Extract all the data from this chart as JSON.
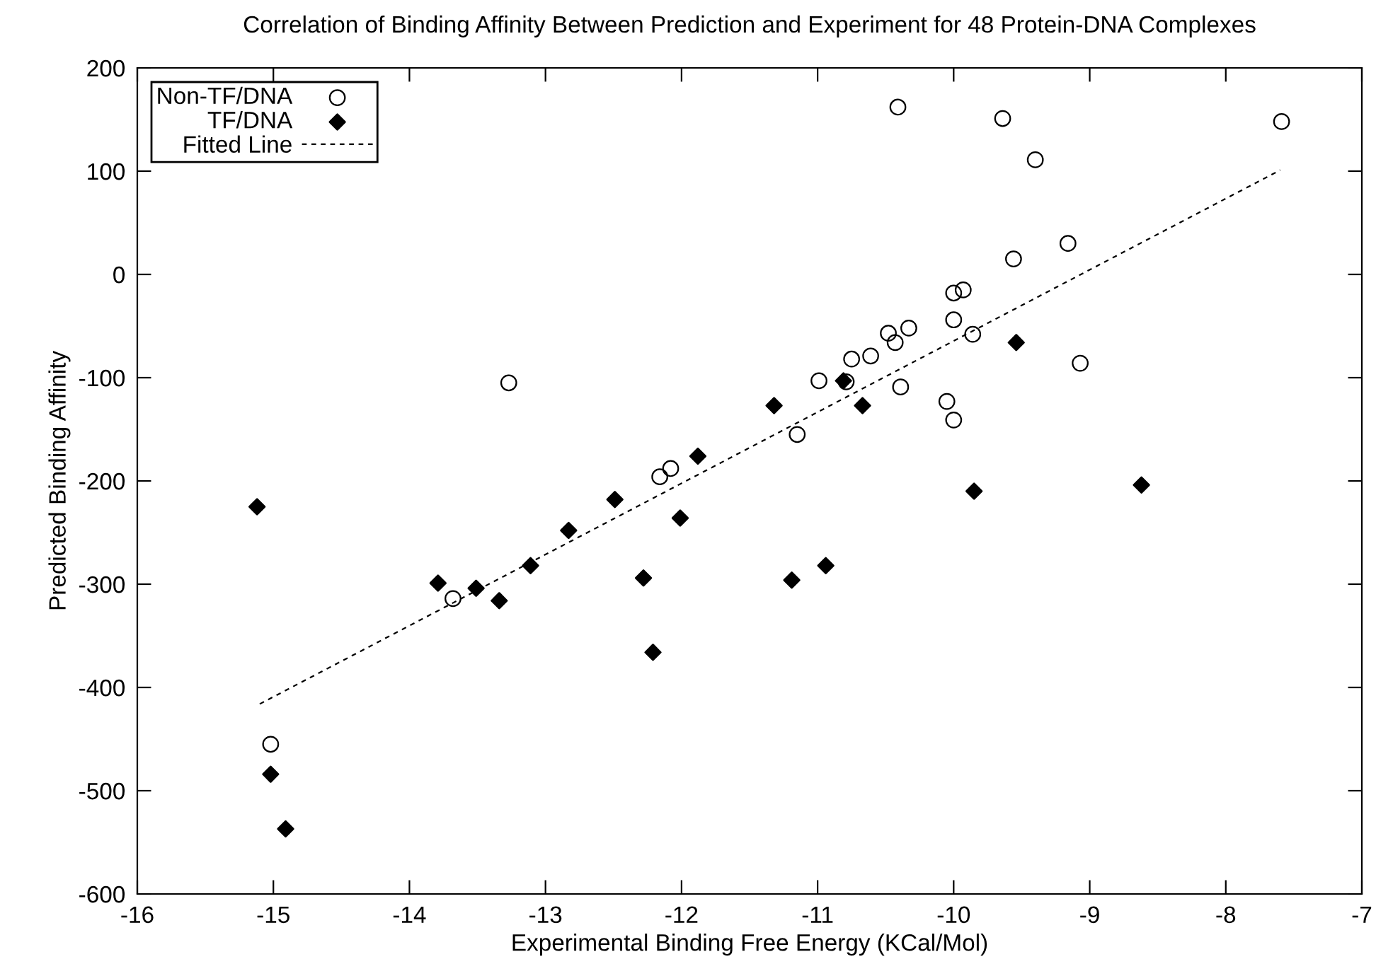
{
  "chart_data": {
    "type": "scatter",
    "title": "Correlation of Binding Affinity Between Prediction and Experiment for 48 Protein-DNA Complexes",
    "xlabel": "Experimental Binding Free Energy (KCal/Mol)",
    "ylabel": "Predicted Binding Affinity",
    "xlim": [
      -16,
      -7
    ],
    "xticks": [
      -16,
      -15,
      -14,
      -13,
      -12,
      -11,
      -10,
      -9,
      -8,
      -7
    ],
    "ylim": [
      -600,
      200
    ],
    "yticks": [
      -600,
      -500,
      -400,
      -300,
      -200,
      -100,
      0,
      100,
      200
    ],
    "grid": false,
    "legend": "top left",
    "series": [
      {
        "name": "Non-TF/DNA",
        "marker": "circle",
        "color": "#000000",
        "x": [
          -10.41,
          -9.64,
          -9.4,
          -7.59,
          -9.56,
          -9.16,
          -10.0,
          -9.93,
          -10.0,
          -10.33,
          -10.48,
          -10.43,
          -9.86,
          -10.61,
          -10.75,
          -10.99,
          -10.79,
          -10.39,
          -10.05,
          -10.0,
          -9.07,
          -11.15,
          -12.08,
          -12.16,
          -13.27,
          -13.68,
          -15.02
        ],
        "values": [
          162,
          151,
          111,
          148,
          15,
          30,
          -18,
          -15,
          -44,
          -52,
          -57,
          -66,
          -58,
          -79,
          -82,
          -103,
          -104,
          -109,
          -123,
          -141,
          -86,
          -155,
          -188,
          -196,
          -105,
          -314,
          -455
        ]
      },
      {
        "name": "TF/DNA",
        "marker": "diamond",
        "color": "#000000",
        "x": [
          -10.81,
          -11.32,
          -10.67,
          -9.54,
          -9.85,
          -8.62,
          -15.12,
          -12.49,
          -12.01,
          -12.83,
          -13.11,
          -13.79,
          -13.51,
          -13.34,
          -12.28,
          -12.21,
          -15.02,
          -14.91,
          -11.19,
          -10.94,
          -11.88
        ],
        "values": [
          -103,
          -127,
          -127,
          -66,
          -210,
          -204,
          -225,
          -218,
          -236,
          -248,
          -282,
          -299,
          -304,
          -316,
          -294,
          -366,
          -484,
          -537,
          -296,
          -282,
          -176
        ]
      },
      {
        "name": "Fitted Line",
        "type": "line",
        "marker": "none",
        "line_style": "dashed",
        "color": "#000000",
        "x": [
          -15.1,
          -7.6
        ],
        "values": [
          -416,
          101
        ]
      }
    ]
  }
}
